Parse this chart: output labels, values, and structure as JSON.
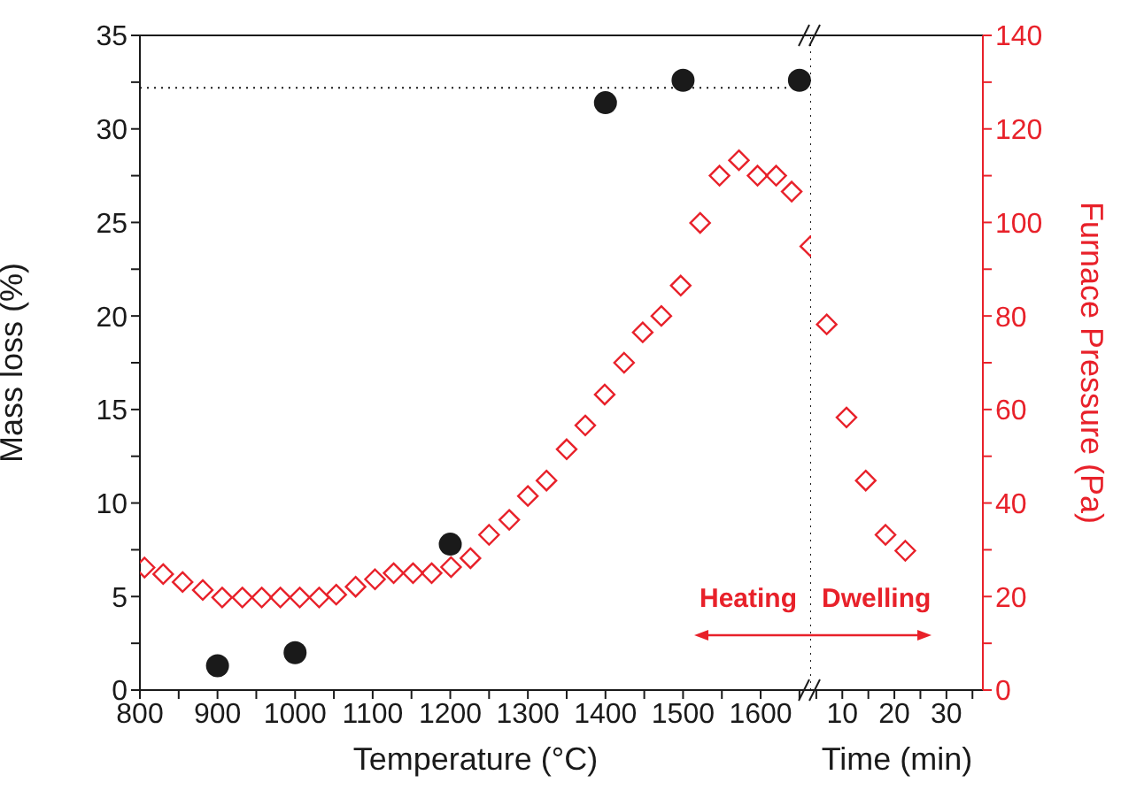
{
  "chart_data": [
    {
      "type": "scatter",
      "xlabel": "Temperature (°C)",
      "ylabel": "Mass loss (%)",
      "xlim": [
        800,
        1665
      ],
      "ylim": [
        0,
        35
      ],
      "y2lim": [
        0,
        140
      ],
      "xticks": [
        800,
        {
          "value": 850,
          "label": null
        },
        900,
        {
          "value": 950,
          "label": null
        },
        1000,
        {
          "value": 1050,
          "label": null
        },
        1100,
        {
          "value": 1150,
          "label": null
        },
        1200,
        {
          "value": 1250,
          "label": null
        },
        1300,
        {
          "value": 1350,
          "label": null
        },
        1400,
        {
          "value": 1450,
          "label": null
        },
        1500,
        {
          "value": 1550,
          "label": null
        },
        1600,
        {
          "value": 1650,
          "label": null
        }
      ],
      "yticks": [
        0,
        {
          "value": 2.5,
          "label": null
        },
        5,
        {
          "value": 7.5,
          "label": null
        },
        10,
        {
          "value": 12.5,
          "label": null
        },
        15,
        {
          "value": 17.5,
          "label": null
        },
        20,
        {
          "value": 22.5,
          "label": null
        },
        25,
        {
          "value": 27.5,
          "label": null
        },
        30,
        {
          "value": 32.5,
          "label": null
        },
        35
      ],
      "tick_labels": [
        "x",
        "y"
      ],
      "series": [
        {
          "color": "#1a1a1a",
          "marker": "circle",
          "x": [
            900,
            1000,
            1200,
            1400,
            1500,
            1650
          ],
          "values": [
            1.3,
            2.0,
            7.8,
            31.4,
            32.6,
            32.6
          ]
        },
        {
          "color": "#e8212a",
          "marker": "diamond",
          "axis": "y2",
          "x": [
            806,
            830,
            855,
            881,
            906,
            932,
            957,
            981,
            1006,
            1031,
            1053,
            1078,
            1103,
            1127,
            1152,
            1176,
            1201,
            1226,
            1250,
            1276,
            1300,
            1324,
            1350,
            1374,
            1399,
            1424,
            1448,
            1472,
            1497,
            1522,
            1547,
            1572,
            1596,
            1620,
            1640,
            1664
          ],
          "values": [
            26.2,
            24.8,
            23.1,
            21.4,
            19.8,
            19.8,
            19.8,
            19.8,
            19.8,
            19.8,
            20.4,
            22.1,
            23.7,
            25.0,
            25.0,
            25.0,
            26.3,
            28.2,
            33.2,
            36.4,
            41.5,
            44.8,
            51.5,
            56.6,
            63.2,
            70.0,
            76.5,
            80.0,
            86.5,
            99.9,
            110,
            113.3,
            110,
            110,
            106.6,
            94.9
          ]
        }
      ],
      "ref_lines": [
        {
          "axis": "y",
          "value": 32.2,
          "line_style": "dotted",
          "color": "#1a1a1a"
        },
        {
          "axis": "x",
          "value": 1665,
          "line_style": "dotted",
          "color": "#1a1a1a"
        }
      ],
      "annotations": [
        "Heating"
      ]
    },
    {
      "type": "scatter",
      "xlabel": "Time (min)",
      "y2label": "Furnace Pressure (Pa)",
      "xlim": [
        4,
        37
      ],
      "y2lim": [
        0,
        140
      ],
      "xticks": [
        {
          "value": 5,
          "label": null
        },
        10,
        {
          "value": 15,
          "label": null
        },
        20,
        {
          "value": 25,
          "label": null
        },
        30,
        {
          "value": 35,
          "label": null
        }
      ],
      "y2ticks": [
        0,
        {
          "value": 10,
          "label": null
        },
        20,
        {
          "value": 30,
          "label": null
        },
        40,
        {
          "value": 50,
          "label": null
        },
        60,
        {
          "value": 70,
          "label": null
        },
        80,
        {
          "value": 90,
          "label": null
        },
        100,
        {
          "value": 110,
          "label": null
        },
        120,
        {
          "value": 130,
          "label": null
        },
        140
      ],
      "tick_labels": [
        "x",
        "y2"
      ],
      "series": [
        {
          "color": "#e8212a",
          "marker": "diamond",
          "axis": "y2",
          "x": [
            7.0,
            10.8,
            14.5,
            18.3,
            22.1
          ],
          "values": [
            78.2,
            58.3,
            44.8,
            33.2,
            29.8
          ]
        }
      ],
      "annotations": [
        "Dwelling"
      ]
    }
  ]
}
